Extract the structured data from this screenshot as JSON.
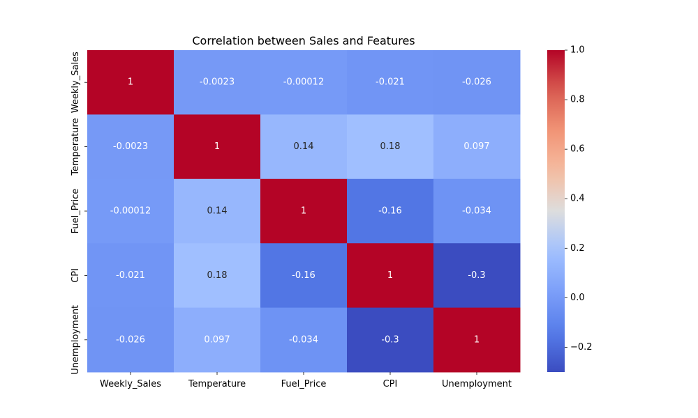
{
  "chart_data": {
    "type": "heatmap",
    "title": "Correlation between Sales and Features",
    "xlabel": "",
    "ylabel": "",
    "x_categories": [
      "Weekly_Sales",
      "Temperature",
      "Fuel_Price",
      "CPI",
      "Unemployment"
    ],
    "y_categories": [
      "Weekly_Sales",
      "Temperature",
      "Fuel_Price",
      "CPI",
      "Unemployment"
    ],
    "values": [
      [
        1,
        -0.0023,
        -0.00012,
        -0.021,
        -0.026
      ],
      [
        -0.0023,
        1,
        0.14,
        0.18,
        0.097
      ],
      [
        -0.00012,
        0.14,
        1,
        -0.16,
        -0.034
      ],
      [
        -0.021,
        0.18,
        -0.16,
        1,
        -0.3
      ],
      [
        -0.026,
        0.097,
        -0.034,
        -0.3,
        1
      ]
    ],
    "cell_labels": [
      [
        "1",
        "-0.0023",
        "-0.00012",
        "-0.021",
        "-0.026"
      ],
      [
        "-0.0023",
        "1",
        "0.14",
        "0.18",
        "0.097"
      ],
      [
        "-0.00012",
        "0.14",
        "1",
        "-0.16",
        "-0.034"
      ],
      [
        "-0.021",
        "0.18",
        "-0.16",
        "1",
        "-0.3"
      ],
      [
        "-0.026",
        "0.097",
        "-0.034",
        "-0.3",
        "1"
      ]
    ],
    "colormap": "coolwarm",
    "colorbar": {
      "range": [
        -0.3,
        1.0
      ],
      "ticks": [
        -0.2,
        0.0,
        0.2,
        0.4,
        0.6,
        0.8,
        1.0
      ],
      "tick_labels": [
        "−0.2",
        "0.0",
        "0.2",
        "0.4",
        "0.6",
        "0.8",
        "1.0"
      ]
    },
    "grid": false,
    "legend": "colorbar-right"
  }
}
